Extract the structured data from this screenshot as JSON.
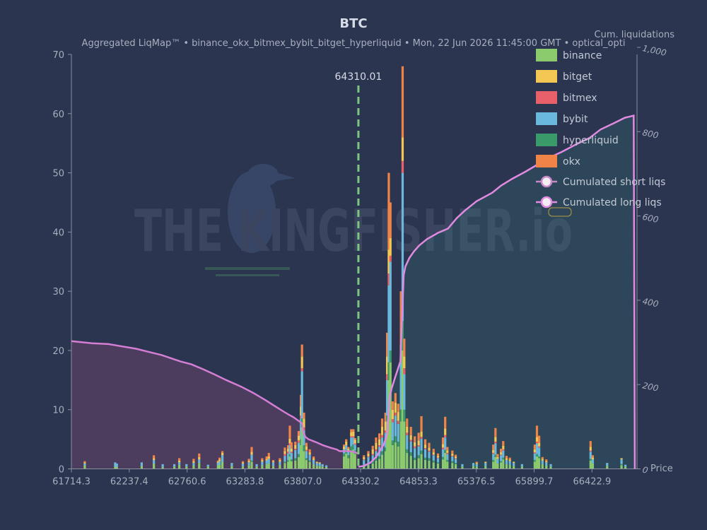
{
  "chart_data": {
    "type": "bar",
    "title": "BTC",
    "subtitle_parts": [
      "Aggregated LiqMap™",
      "binance_okx_bitmex_bybit_bitget_hyperliquid",
      "Mon, 22 Jun 2026 11:45:00 GMT",
      "optical_opti"
    ],
    "subtitle_separator": "  •  ",
    "x_ticks": [
      "61714.3",
      "62237.4",
      "62760.6",
      "63283.8",
      "63807.0",
      "64330.2",
      "64853.3",
      "65376.5",
      "65899.7",
      "66422.9"
    ],
    "xlabel": "Price",
    "y_ticks": [
      "0",
      "10",
      "20",
      "30",
      "40",
      "50",
      "60",
      "70"
    ],
    "ylim": [
      0,
      70
    ],
    "y2label": "Cum. liquidations",
    "y2_ticks": [
      "0",
      "200",
      "400",
      "600",
      "800",
      "1,000"
    ],
    "y2lim": [
      0,
      1000
    ],
    "xlim": [
      61714.3,
      66830
    ],
    "current_price": 64310.01,
    "current_price_label": "64310.01",
    "legend": [
      {
        "name": "binance",
        "color": "#8cca6e"
      },
      {
        "name": "bitget",
        "color": "#f4c754"
      },
      {
        "name": "bitmex",
        "color": "#e8606a"
      },
      {
        "name": "bybit",
        "color": "#6ab8dc"
      },
      {
        "name": "hyperliquid",
        "color": "#3a9a6a"
      },
      {
        "name": "okx",
        "color": "#f08448"
      }
    ],
    "line_legend": [
      {
        "name": "Cumulated short liqs",
        "color": "#c888c8"
      },
      {
        "name": "Cumulated long liqs",
        "color": "#e08ae0"
      }
    ],
    "watermark": "THE KINGFISHER.io",
    "bars": [
      {
        "x": 61835,
        "b": 0.6,
        "g": 0.2,
        "m": 0,
        "y": 0.3,
        "h": 0,
        "o": 0.2
      },
      {
        "x": 62110,
        "b": 0.4,
        "g": 0,
        "m": 0,
        "y": 0.7,
        "h": 0,
        "o": 0
      },
      {
        "x": 62125,
        "b": 0.3,
        "g": 0,
        "m": 0,
        "y": 0.6,
        "h": 0,
        "o": 0
      },
      {
        "x": 62350,
        "b": 0.5,
        "g": 0,
        "m": 0,
        "y": 0.6,
        "h": 0,
        "o": 0
      },
      {
        "x": 62460,
        "b": 0.9,
        "g": 0.3,
        "m": 0,
        "y": 0.6,
        "h": 0,
        "o": 0.5
      },
      {
        "x": 62540,
        "b": 0.3,
        "g": 0,
        "m": 0,
        "y": 0.5,
        "h": 0,
        "o": 0
      },
      {
        "x": 62645,
        "b": 0.4,
        "g": 0,
        "m": 0,
        "y": 0.4,
        "h": 0,
        "o": 0
      },
      {
        "x": 62690,
        "b": 0.7,
        "g": 0.3,
        "m": 0,
        "y": 0.4,
        "h": 0,
        "o": 0.4
      },
      {
        "x": 62755,
        "b": 0.4,
        "g": 0,
        "m": 0,
        "y": 0.4,
        "h": 0,
        "o": 0
      },
      {
        "x": 62820,
        "b": 0.6,
        "g": 0.3,
        "m": 0,
        "y": 0.4,
        "h": 0,
        "o": 0.4
      },
      {
        "x": 62870,
        "b": 1,
        "g": 0.4,
        "m": 0,
        "y": 0.6,
        "h": 0,
        "o": 0.6
      },
      {
        "x": 62950,
        "b": 0.4,
        "g": 0,
        "m": 0,
        "y": 0.3,
        "h": 0,
        "o": 0
      },
      {
        "x": 63040,
        "b": 0.6,
        "g": 0.2,
        "m": 0,
        "y": 0.4,
        "h": 0,
        "o": 0.2
      },
      {
        "x": 63055,
        "b": 0.7,
        "g": 0.3,
        "m": 0,
        "y": 0.6,
        "h": 0,
        "o": 0.3
      },
      {
        "x": 63080,
        "b": 1.2,
        "g": 0.4,
        "m": 0,
        "y": 1.1,
        "h": 0,
        "o": 0.3
      },
      {
        "x": 63165,
        "b": 0.5,
        "g": 0,
        "m": 0,
        "y": 0.5,
        "h": 0,
        "o": 0
      },
      {
        "x": 63265,
        "b": 0.4,
        "g": 0.2,
        "m": 0,
        "y": 0.5,
        "h": 0,
        "o": 0.2
      },
      {
        "x": 63320,
        "b": 0.6,
        "g": 0.3,
        "m": 0,
        "y": 0.5,
        "h": 0,
        "o": 0.3
      },
      {
        "x": 63345,
        "b": 1.2,
        "g": 0.5,
        "m": 0,
        "y": 1,
        "h": 0.2,
        "o": 0.8
      },
      {
        "x": 63390,
        "b": 0.4,
        "g": 0,
        "m": 0,
        "y": 0.4,
        "h": 0,
        "o": 0
      },
      {
        "x": 63440,
        "b": 0.6,
        "g": 0.3,
        "m": 0,
        "y": 0.6,
        "h": 0,
        "o": 0.3
      },
      {
        "x": 63480,
        "b": 0.8,
        "g": 0.3,
        "m": 0,
        "y": 0.6,
        "h": 0,
        "o": 0.4
      },
      {
        "x": 63500,
        "b": 0.9,
        "g": 0.4,
        "m": 0,
        "y": 0.8,
        "h": 0,
        "o": 0.6
      },
      {
        "x": 63540,
        "b": 0.5,
        "g": 0.2,
        "m": 0,
        "y": 0.6,
        "h": 0,
        "o": 0.2
      },
      {
        "x": 63600,
        "b": 0.7,
        "g": 0.3,
        "m": 0,
        "y": 0.5,
        "h": 0,
        "o": 0.3
      },
      {
        "x": 63645,
        "b": 1,
        "g": 0.5,
        "m": 0.3,
        "y": 1,
        "h": 0.2,
        "o": 0.6
      },
      {
        "x": 63675,
        "b": 1.2,
        "g": 0.5,
        "m": 0.3,
        "y": 1.1,
        "h": 0.3,
        "o": 0.6
      },
      {
        "x": 63690,
        "b": 2.1,
        "g": 0.8,
        "m": 0.3,
        "y": 1.5,
        "h": 0.4,
        "o": 2.2
      },
      {
        "x": 63705,
        "b": 1.3,
        "g": 0.5,
        "m": 0.2,
        "y": 1.1,
        "h": 0.3,
        "o": 1.1
      },
      {
        "x": 63740,
        "b": 1.4,
        "g": 0.6,
        "m": 0.2,
        "y": 1.4,
        "h": 0.4,
        "o": 0.6
      },
      {
        "x": 63770,
        "b": 2,
        "g": 0.8,
        "m": 0.4,
        "y": 1.9,
        "h": 0.5,
        "o": 0.8
      },
      {
        "x": 63790,
        "b": 4,
        "g": 1.5,
        "m": 0.5,
        "y": 3.5,
        "h": 1,
        "o": 2
      },
      {
        "x": 63800,
        "b": 7,
        "g": 2,
        "m": 0.5,
        "y": 8,
        "h": 1.5,
        "o": 2
      },
      {
        "x": 63818,
        "b": 3,
        "g": 1.5,
        "m": 0.5,
        "y": 2.5,
        "h": 1,
        "o": 1
      },
      {
        "x": 63840,
        "b": 1.5,
        "g": 0.6,
        "m": 0.2,
        "y": 1.2,
        "h": 0.3,
        "o": 0.6
      },
      {
        "x": 63870,
        "b": 1.2,
        "g": 0.4,
        "m": 0,
        "y": 1,
        "h": 0.2,
        "o": 0.5
      },
      {
        "x": 63905,
        "b": 0.8,
        "g": 0.3,
        "m": 0,
        "y": 0.7,
        "h": 0,
        "o": 0.3
      },
      {
        "x": 63935,
        "b": 0.5,
        "g": 0.2,
        "m": 0,
        "y": 0.5,
        "h": 0,
        "o": 0
      },
      {
        "x": 63960,
        "b": 0.5,
        "g": 0.2,
        "m": 0,
        "y": 0.4,
        "h": 0,
        "o": 0
      },
      {
        "x": 63985,
        "b": 0.4,
        "g": 0,
        "m": 0,
        "y": 0.4,
        "h": 0,
        "o": 0
      },
      {
        "x": 64020,
        "b": 0.3,
        "g": 0,
        "m": 0,
        "y": 0.3,
        "h": 0,
        "o": 0
      },
      {
        "x": 64180,
        "b": 2.1,
        "g": 0.5,
        "m": 0,
        "y": 0.7,
        "h": 0.5,
        "o": 0.3
      },
      {
        "x": 64200,
        "b": 2.6,
        "g": 0.6,
        "m": 0,
        "y": 0.8,
        "h": 0.6,
        "o": 0.4
      },
      {
        "x": 64220,
        "b": 1.8,
        "g": 0.5,
        "m": 0,
        "y": 0.6,
        "h": 0.5,
        "o": 0.3
      },
      {
        "x": 64245,
        "b": 3,
        "g": 0.7,
        "m": 0.2,
        "y": 1.5,
        "h": 0.8,
        "o": 0.5
      },
      {
        "x": 64265,
        "b": 3.3,
        "g": 0.8,
        "m": 0.2,
        "y": 1.2,
        "h": 0.8,
        "o": 0.4
      },
      {
        "x": 64280,
        "b": 2.5,
        "g": 0.6,
        "m": 0.2,
        "y": 1,
        "h": 0.6,
        "o": 0.3
      },
      {
        "x": 64360,
        "b": 0.5,
        "g": 0.4,
        "m": 0.1,
        "y": 0.8,
        "h": 0.2,
        "o": 0.3
      },
      {
        "x": 64400,
        "b": 0.7,
        "g": 0.5,
        "m": 0.1,
        "y": 1,
        "h": 0.3,
        "o": 0.4
      },
      {
        "x": 64440,
        "b": 0.9,
        "g": 0.8,
        "m": 0.2,
        "y": 1.1,
        "h": 0.3,
        "o": 0.6
      },
      {
        "x": 64470,
        "b": 1.4,
        "g": 1.1,
        "m": 0.3,
        "y": 1.2,
        "h": 0.4,
        "o": 0.9
      },
      {
        "x": 64500,
        "b": 1.7,
        "g": 1,
        "m": 0.3,
        "y": 1.6,
        "h": 0.4,
        "o": 1
      },
      {
        "x": 64525,
        "b": 2.4,
        "g": 1.4,
        "m": 0.4,
        "y": 2.3,
        "h": 0.6,
        "o": 1.4
      },
      {
        "x": 64555,
        "b": 3,
        "g": 1.5,
        "m": 0.4,
        "y": 2.5,
        "h": 0.6,
        "o": 1.5
      },
      {
        "x": 64570,
        "b": 8,
        "g": 3,
        "m": 1,
        "y": 6,
        "h": 1,
        "o": 4
      },
      {
        "x": 64585,
        "b": 15,
        "g": 4,
        "m": 2,
        "y": 13,
        "h": 3,
        "o": 13
      },
      {
        "x": 64600,
        "b": 18,
        "g": 3,
        "m": 1,
        "y": 15,
        "h": 2,
        "o": 6
      },
      {
        "x": 64620,
        "b": 4,
        "g": 1.6,
        "m": 0.5,
        "y": 3.1,
        "h": 0.8,
        "o": 1.4
      },
      {
        "x": 64645,
        "b": 4.5,
        "g": 1.7,
        "m": 0.5,
        "y": 3.5,
        "h": 1,
        "o": 1.6
      },
      {
        "x": 64670,
        "b": 3.8,
        "g": 1.5,
        "m": 0.5,
        "y": 3,
        "h": 0.8,
        "o": 1.4
      },
      {
        "x": 64695,
        "b": 8,
        "g": 2,
        "m": 1,
        "y": 8,
        "h": 2,
        "o": 9
      },
      {
        "x": 64710,
        "b": 20,
        "g": 4,
        "m": 2,
        "y": 25,
        "h": 5,
        "o": 12
      },
      {
        "x": 64725,
        "b": 8,
        "g": 2,
        "m": 1,
        "y": 6,
        "h": 2,
        "o": 3
      },
      {
        "x": 64750,
        "b": 2.7,
        "g": 1,
        "m": 0.4,
        "y": 2.4,
        "h": 0.6,
        "o": 1.4
      },
      {
        "x": 64785,
        "b": 2.2,
        "g": 0.8,
        "m": 0.3,
        "y": 1.8,
        "h": 0.6,
        "o": 1.4
      },
      {
        "x": 64820,
        "b": 1.5,
        "g": 0.7,
        "m": 0.3,
        "y": 1.6,
        "h": 0.4,
        "o": 1
      },
      {
        "x": 64855,
        "b": 1.8,
        "g": 0.8,
        "m": 0.2,
        "y": 1.5,
        "h": 0.5,
        "o": 1.3
      },
      {
        "x": 64880,
        "b": 2.5,
        "g": 0.9,
        "m": 0.3,
        "y": 2,
        "h": 0.6,
        "o": 2.6
      },
      {
        "x": 64915,
        "b": 1.5,
        "g": 0.6,
        "m": 0.2,
        "y": 1.4,
        "h": 0.4,
        "o": 0.9
      },
      {
        "x": 64950,
        "b": 1.4,
        "g": 0.5,
        "m": 0.2,
        "y": 1.1,
        "h": 0.4,
        "o": 0.8
      },
      {
        "x": 64990,
        "b": 1.1,
        "g": 0.4,
        "m": 0.1,
        "y": 0.9,
        "h": 0.3,
        "o": 0.6
      },
      {
        "x": 65030,
        "b": 0.9,
        "g": 0.3,
        "m": 0.1,
        "y": 0.7,
        "h": 0.2,
        "o": 0.4
      },
      {
        "x": 65075,
        "b": 1.6,
        "g": 0.6,
        "m": 0.3,
        "y": 1.3,
        "h": 0.4,
        "o": 1.1
      },
      {
        "x": 65095,
        "b": 2.7,
        "g": 1.1,
        "m": 0.4,
        "y": 2.1,
        "h": 0.5,
        "o": 2
      },
      {
        "x": 65115,
        "b": 1.2,
        "g": 0.4,
        "m": 0.2,
        "y": 1,
        "h": 0.3,
        "o": 0.6
      },
      {
        "x": 65160,
        "b": 1,
        "g": 0.4,
        "m": 0.1,
        "y": 0.8,
        "h": 0.3,
        "o": 0.5
      },
      {
        "x": 65190,
        "b": 0.8,
        "g": 0.3,
        "m": 0.1,
        "y": 0.7,
        "h": 0.2,
        "o": 0.3
      },
      {
        "x": 65250,
        "b": 0.4,
        "g": 0,
        "m": 0,
        "y": 0.4,
        "h": 0,
        "o": 0
      },
      {
        "x": 65350,
        "b": 0.5,
        "g": 0,
        "m": 0,
        "y": 0.5,
        "h": 0,
        "o": 0
      },
      {
        "x": 65380,
        "b": 0.4,
        "g": 0.2,
        "m": 0,
        "y": 0.4,
        "h": 0,
        "o": 0.2
      },
      {
        "x": 65460,
        "b": 0.5,
        "g": 0.2,
        "m": 0,
        "y": 0.5,
        "h": 0,
        "o": 0
      },
      {
        "x": 65530,
        "b": 1.2,
        "g": 0.5,
        "m": 0.2,
        "y": 1,
        "h": 0.3,
        "o": 0.9
      },
      {
        "x": 65550,
        "b": 2,
        "g": 0.8,
        "m": 0.3,
        "y": 1.9,
        "h": 0.4,
        "o": 1.5
      },
      {
        "x": 65570,
        "b": 0.9,
        "g": 0.3,
        "m": 0,
        "y": 0.8,
        "h": 0,
        "o": 0.5
      },
      {
        "x": 65600,
        "b": 1.1,
        "g": 0.4,
        "m": 0.1,
        "y": 1,
        "h": 0.2,
        "o": 0.6
      },
      {
        "x": 65620,
        "b": 1.6,
        "g": 0.6,
        "m": 0.2,
        "y": 1.2,
        "h": 0.3,
        "o": 0.8
      },
      {
        "x": 65650,
        "b": 0.8,
        "g": 0.3,
        "m": 0,
        "y": 0.7,
        "h": 0,
        "o": 0.4
      },
      {
        "x": 65680,
        "b": 0.7,
        "g": 0.3,
        "m": 0,
        "y": 0.6,
        "h": 0,
        "o": 0.3
      },
      {
        "x": 65715,
        "b": 0.5,
        "g": 0.2,
        "m": 0,
        "y": 0.5,
        "h": 0,
        "o": 0
      },
      {
        "x": 65790,
        "b": 0.4,
        "g": 0,
        "m": 0,
        "y": 0.4,
        "h": 0,
        "o": 0
      },
      {
        "x": 65905,
        "b": 1.2,
        "g": 0.5,
        "m": 0.2,
        "y": 1.1,
        "h": 0.3,
        "o": 0.8
      },
      {
        "x": 65925,
        "b": 2.1,
        "g": 0.8,
        "m": 0.3,
        "y": 1.8,
        "h": 0.4,
        "o": 1.9
      },
      {
        "x": 65945,
        "b": 1.8,
        "g": 0.6,
        "m": 0.2,
        "y": 1.5,
        "h": 0.3,
        "o": 1.2
      },
      {
        "x": 65975,
        "b": 0.8,
        "g": 0.3,
        "m": 0,
        "y": 0.6,
        "h": 0,
        "o": 0.3
      },
      {
        "x": 66010,
        "b": 0.6,
        "g": 0.2,
        "m": 0,
        "y": 0.5,
        "h": 0,
        "o": 0.3
      },
      {
        "x": 66050,
        "b": 0.4,
        "g": 0,
        "m": 0,
        "y": 0.4,
        "h": 0,
        "o": 0
      },
      {
        "x": 66410,
        "b": 1.4,
        "g": 0.6,
        "m": 0.2,
        "y": 1.2,
        "h": 0.3,
        "o": 1
      },
      {
        "x": 66430,
        "b": 0.9,
        "g": 0.3,
        "m": 0,
        "y": 0.7,
        "h": 0,
        "o": 0.4
      },
      {
        "x": 66560,
        "b": 0.5,
        "g": 0,
        "m": 0,
        "y": 0.5,
        "h": 0,
        "o": 0
      },
      {
        "x": 66690,
        "b": 0.6,
        "g": 0.2,
        "m": 0,
        "y": 0.8,
        "h": 0.2,
        "o": 0
      },
      {
        "x": 66725,
        "b": 0.4,
        "g": 0,
        "m": 0,
        "y": 0.3,
        "h": 0,
        "o": 0
      }
    ],
    "short_curve": [
      [
        61714.3,
        303
      ],
      [
        61830,
        300
      ],
      [
        61900,
        298
      ],
      [
        62050,
        296
      ],
      [
        62140,
        292
      ],
      [
        62300,
        285
      ],
      [
        62390,
        279
      ],
      [
        62530,
        270
      ],
      [
        62620,
        262
      ],
      [
        62700,
        255
      ],
      [
        62800,
        248
      ],
      [
        62900,
        237
      ],
      [
        63000,
        225
      ],
      [
        63120,
        210
      ],
      [
        63250,
        195
      ],
      [
        63360,
        180
      ],
      [
        63470,
        163
      ],
      [
        63560,
        148
      ],
      [
        63640,
        135
      ],
      [
        63690,
        127
      ],
      [
        63705,
        125
      ],
      [
        63720,
        123
      ],
      [
        63780,
        112
      ],
      [
        63800,
        108
      ],
      [
        63812,
        88
      ],
      [
        63830,
        76
      ],
      [
        63860,
        70
      ],
      [
        63930,
        63
      ],
      [
        63990,
        56
      ],
      [
        64060,
        50
      ],
      [
        64115,
        46
      ],
      [
        64140,
        42
      ],
      [
        64220,
        42
      ],
      [
        64260,
        41
      ],
      [
        64290,
        38
      ],
      [
        64310.01,
        36
      ]
    ],
    "long_curve": [
      [
        64310.01,
        5
      ],
      [
        64360,
        7
      ],
      [
        64420,
        15
      ],
      [
        64470,
        28
      ],
      [
        64510,
        45
      ],
      [
        64540,
        58
      ],
      [
        64570,
        82
      ],
      [
        64590,
        165
      ],
      [
        64610,
        190
      ],
      [
        64640,
        215
      ],
      [
        64690,
        255
      ],
      [
        64720,
        460
      ],
      [
        64735,
        480
      ],
      [
        64770,
        500
      ],
      [
        64810,
        515
      ],
      [
        64860,
        530
      ],
      [
        64930,
        545
      ],
      [
        65030,
        560
      ],
      [
        65120,
        570
      ],
      [
        65200,
        595
      ],
      [
        65270,
        612
      ],
      [
        65380,
        635
      ],
      [
        65520,
        655
      ],
      [
        65600,
        672
      ],
      [
        65700,
        688
      ],
      [
        65820,
        705
      ],
      [
        65950,
        725
      ],
      [
        66050,
        740
      ],
      [
        66150,
        752
      ],
      [
        66280,
        770
      ],
      [
        66400,
        785
      ],
      [
        66500,
        805
      ],
      [
        66620,
        820
      ],
      [
        66720,
        833
      ],
      [
        66800,
        838
      ],
      [
        66810,
        0
      ]
    ]
  }
}
